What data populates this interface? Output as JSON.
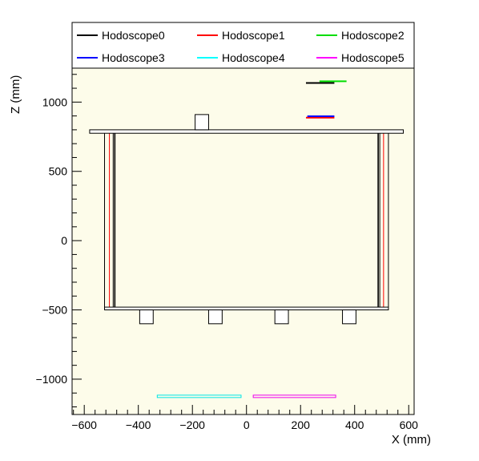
{
  "chart_data": {
    "type": "diagram",
    "xlabel": "X (mm)",
    "ylabel": "Z (mm)",
    "xlim": [
      -645,
      620
    ],
    "ylim": [
      -1255,
      1245
    ],
    "x_ticks": [
      -600,
      -400,
      -200,
      0,
      200,
      400,
      600
    ],
    "y_ticks": [
      -1000,
      -500,
      0,
      500,
      1000
    ],
    "x_tick_labels": [
      "−600",
      "−400",
      "−200",
      "0",
      "200",
      "400",
      "600"
    ],
    "y_tick_labels": [
      "−1000",
      "−500",
      "0",
      "500",
      "1000"
    ],
    "background": "#fdfcea",
    "legend_placement": "top",
    "legend": [
      {
        "name": "Hodoscope0",
        "color": "#000000"
      },
      {
        "name": "Hodoscope1",
        "color": "#ff0000"
      },
      {
        "name": "Hodoscope2",
        "color": "#00dd00"
      },
      {
        "name": "Hodoscope3",
        "color": "#0000ff"
      },
      {
        "name": "Hodoscope4",
        "color": "#00ffff"
      },
      {
        "name": "Hodoscope5",
        "color": "#ff00ff"
      }
    ],
    "geometry": {
      "top_plate": {
        "x1": -580,
        "x2": 580,
        "z1": 775,
        "z2": 800
      },
      "bottom_plate": {
        "x1": -525,
        "x2": 525,
        "z1": -500,
        "z2": -480
      },
      "top_block": {
        "x1": -190,
        "x2": -140,
        "z1": 800,
        "z2": 910
      },
      "bottom_blocks": [
        {
          "x1": -395,
          "x2": -345,
          "z1": -600,
          "z2": -500
        },
        {
          "x1": -140,
          "x2": -90,
          "z1": -600,
          "z2": -500
        },
        {
          "x1": 105,
          "x2": 155,
          "z1": -600,
          "z2": -500
        },
        {
          "x1": 355,
          "x2": 405,
          "z1": -600,
          "z2": -500
        }
      ],
      "left_walls": [
        {
          "x": -525,
          "color": "#000000"
        },
        {
          "x": -507,
          "color": "#ff0000"
        },
        {
          "x": -493,
          "color": "#000000"
        },
        {
          "x": -487,
          "color": "#000000"
        }
      ],
      "right_walls": [
        {
          "x": 487,
          "color": "#000000"
        },
        {
          "x": 493,
          "color": "#000000"
        },
        {
          "x": 507,
          "color": "#ff0000"
        },
        {
          "x": 525,
          "color": "#000000"
        }
      ]
    },
    "series": [
      {
        "name": "Hodoscope0",
        "color": "#000000",
        "x1": 220,
        "x2": 325,
        "z": 1138,
        "double": false
      },
      {
        "name": "Hodoscope2",
        "color": "#00dd00",
        "x1": 270,
        "x2": 370,
        "z": 1150,
        "double": false
      },
      {
        "name": "Hodoscope1",
        "color": "#ff0000",
        "x1": 220,
        "x2": 325,
        "z": 888,
        "double": false
      },
      {
        "name": "Hodoscope3",
        "color": "#0000ff",
        "x1": 225,
        "x2": 325,
        "z": 898,
        "double": false
      },
      {
        "name": "Hodoscope4",
        "color": "#00e5e5",
        "x1": -330,
        "x2": -20,
        "z": -1124,
        "double": true
      },
      {
        "name": "Hodoscope5",
        "color": "#ee00ee",
        "x1": 25,
        "x2": 330,
        "z": -1124,
        "double": true
      }
    ]
  }
}
